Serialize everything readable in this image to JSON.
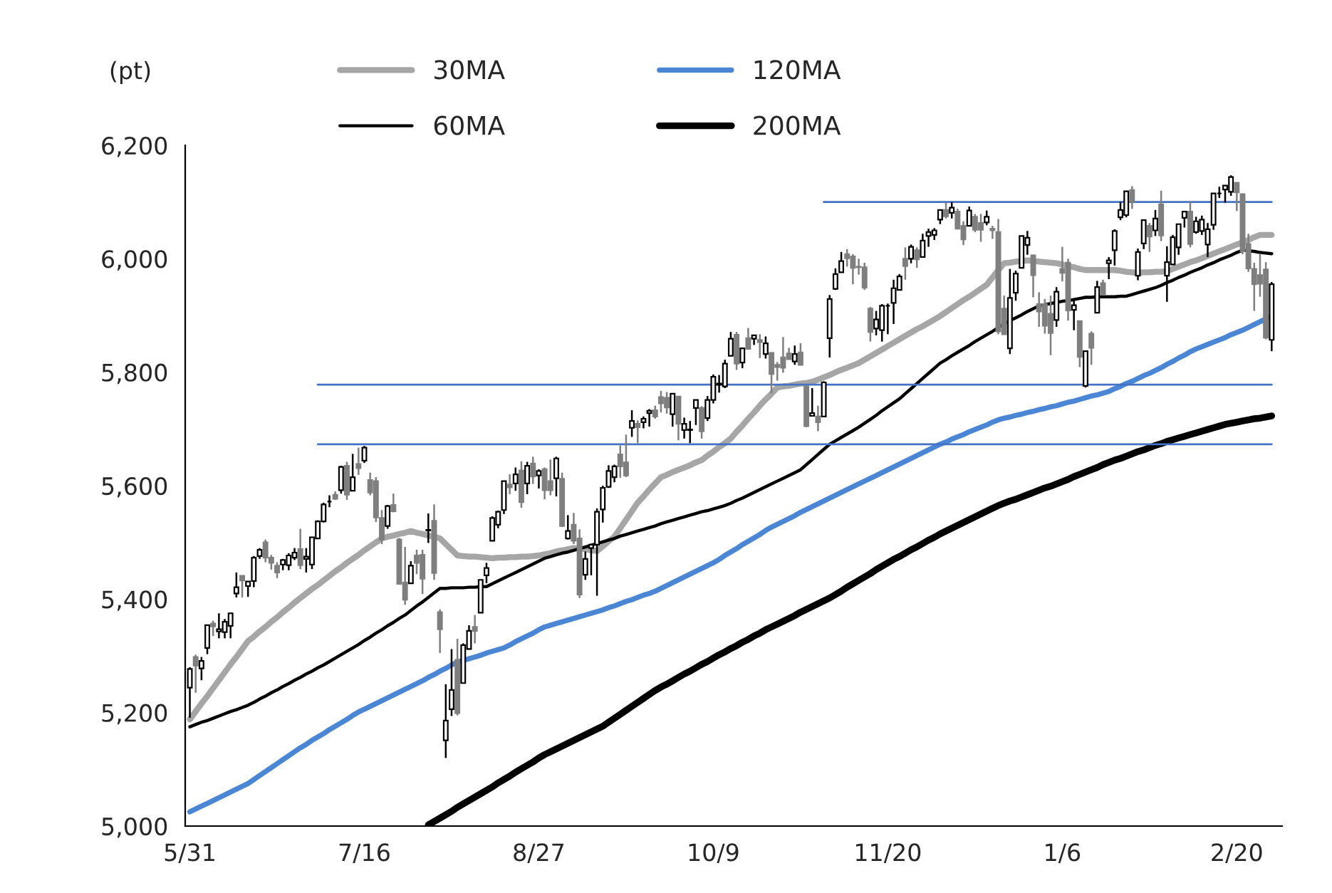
{
  "chart_data": {
    "type": "candlestick",
    "ylabel": "(pt)",
    "categories": [
      "5/31",
      null,
      null,
      null,
      null,
      null,
      null,
      null,
      null,
      null,
      null,
      null,
      null,
      null,
      null,
      null,
      null,
      null,
      null,
      null,
      null,
      null,
      null,
      null,
      null,
      null,
      null,
      null,
      null,
      null,
      "7/16",
      null,
      null,
      null,
      null,
      null,
      null,
      null,
      null,
      null,
      null,
      null,
      null,
      null,
      null,
      null,
      null,
      null,
      null,
      null,
      null,
      null,
      null,
      null,
      null,
      null,
      null,
      null,
      null,
      null,
      "8/27",
      null,
      null,
      null,
      null,
      null,
      null,
      null,
      null,
      null,
      null,
      null,
      null,
      null,
      null,
      null,
      null,
      null,
      null,
      null,
      null,
      null,
      null,
      null,
      null,
      null,
      null,
      null,
      null,
      null,
      "10/9",
      null,
      null,
      null,
      null,
      null,
      null,
      null,
      null,
      null,
      null,
      null,
      null,
      null,
      null,
      null,
      null,
      null,
      null,
      null,
      null,
      null,
      null,
      null,
      null,
      null,
      null,
      null,
      null,
      null,
      "11/20",
      null,
      null,
      null,
      null,
      null,
      null,
      null,
      null,
      null,
      null,
      null,
      null,
      null,
      null,
      null,
      null,
      null,
      null,
      null,
      null,
      null,
      null,
      null,
      null,
      null,
      null,
      null,
      null,
      null,
      "1/6",
      null,
      null,
      null,
      null,
      null,
      null,
      null,
      null,
      null,
      null,
      null,
      null,
      null,
      null,
      null,
      null,
      null,
      null,
      null,
      null,
      null,
      null,
      null,
      null,
      null,
      null,
      null,
      null,
      null,
      "2/20",
      null,
      null,
      null,
      null,
      null,
      null
    ],
    "ohlc": [
      [
        5244,
        5280,
        5191,
        5277
      ],
      [
        5298,
        5302,
        5235,
        5283
      ],
      [
        5278,
        5298,
        5257,
        5291
      ],
      [
        5314,
        5355,
        5303,
        5354
      ],
      [
        5357,
        5362,
        5335,
        5352
      ],
      [
        5343,
        5375,
        5331,
        5347
      ],
      [
        5342,
        5365,
        5331,
        5360
      ],
      [
        5353,
        5376,
        5331,
        5375
      ],
      [
        5410,
        5447,
        5403,
        5421
      ],
      [
        5441,
        5441,
        5403,
        5433
      ],
      [
        5423,
        5432,
        5404,
        5431
      ],
      [
        5432,
        5476,
        5421,
        5473
      ],
      [
        5476,
        5490,
        5471,
        5487
      ],
      [
        5500,
        5505,
        5465,
        5473
      ],
      [
        5473,
        5478,
        5452,
        5464
      ],
      [
        5459,
        5465,
        5437,
        5447
      ],
      [
        5461,
        5471,
        5451,
        5469
      ],
      [
        5460,
        5481,
        5451,
        5477
      ],
      [
        5473,
        5490,
        5469,
        5482
      ],
      [
        5488,
        5524,
        5453,
        5460
      ],
      [
        5471,
        5490,
        5447,
        5475
      ],
      [
        5461,
        5510,
        5453,
        5509
      ],
      [
        5507,
        5539,
        5507,
        5537
      ],
      [
        5537,
        5570,
        5535,
        5567
      ],
      [
        5572,
        5583,
        5562,
        5572
      ],
      [
        5584,
        5590,
        5575,
        5577
      ],
      [
        5592,
        5635,
        5586,
        5633
      ],
      [
        5635,
        5642,
        5575,
        5584
      ],
      [
        5591,
        5656,
        5591,
        5615
      ],
      [
        5638,
        5667,
        5619,
        5631
      ],
      [
        5644,
        5670,
        5640,
        5667
      ],
      [
        5610,
        5623,
        5583,
        5588
      ],
      [
        5608,
        5615,
        5536,
        5544
      ],
      [
        5543,
        5557,
        5497,
        5505
      ],
      [
        5529,
        5566,
        5524,
        5564
      ],
      [
        5566,
        5586,
        5553,
        5555
      ],
      [
        5505,
        5508,
        5427,
        5427
      ],
      [
        5429,
        5492,
        5390,
        5399
      ],
      [
        5428,
        5467,
        5427,
        5459
      ],
      [
        5477,
        5487,
        5444,
        5464
      ],
      [
        5478,
        5487,
        5409,
        5436
      ],
      [
        5521,
        5551,
        5499,
        5522
      ],
      [
        5538,
        5567,
        5434,
        5446
      ],
      [
        5377,
        5382,
        5305,
        5347
      ],
      [
        5151,
        5250,
        5120,
        5186
      ],
      [
        5206,
        5312,
        5194,
        5240
      ],
      [
        5293,
        5330,
        5195,
        5199
      ],
      [
        5252,
        5322,
        5252,
        5319
      ],
      [
        5312,
        5354,
        5311,
        5344
      ],
      [
        5351,
        5372,
        5322,
        5344
      ],
      [
        5376,
        5434,
        5376,
        5434
      ],
      [
        5442,
        5464,
        5428,
        5455
      ],
      [
        5503,
        5546,
        5502,
        5543
      ],
      [
        5531,
        5556,
        5525,
        5554
      ],
      [
        5557,
        5608,
        5550,
        5608
      ],
      [
        5602,
        5620,
        5585,
        5597
      ],
      [
        5604,
        5632,
        5591,
        5620
      ],
      [
        5627,
        5643,
        5561,
        5571
      ],
      [
        5604,
        5642,
        5585,
        5635
      ],
      [
        5639,
        5651,
        5603,
        5616
      ],
      [
        5618,
        5629,
        5595,
        5626
      ],
      [
        5629,
        5632,
        5576,
        5592
      ],
      [
        5608,
        5646,
        5583,
        5592
      ],
      [
        5613,
        5651,
        5581,
        5648
      ],
      [
        5612,
        5623,
        5527,
        5529
      ],
      [
        5507,
        5548,
        5505,
        5520
      ],
      [
        5531,
        5552,
        5497,
        5503
      ],
      [
        5507,
        5523,
        5402,
        5408
      ],
      [
        5443,
        5484,
        5434,
        5471
      ],
      [
        5490,
        5497,
        5442,
        5496
      ],
      [
        5496,
        5560,
        5406,
        5554
      ],
      [
        5558,
        5600,
        5535,
        5596
      ],
      [
        5598,
        5636,
        5596,
        5626
      ],
      [
        5615,
        5637,
        5606,
        5634
      ],
      [
        5655,
        5671,
        5614,
        5634
      ],
      [
        5641,
        5690,
        5615,
        5618
      ],
      [
        5702,
        5733,
        5686,
        5714
      ],
      [
        5709,
        5715,
        5675,
        5703
      ],
      [
        5712,
        5722,
        5701,
        5718
      ],
      [
        5728,
        5735,
        5704,
        5732
      ],
      [
        5733,
        5741,
        5718,
        5722
      ],
      [
        5756,
        5767,
        5729,
        5745
      ],
      [
        5755,
        5765,
        5727,
        5738
      ],
      [
        5726,
        5763,
        5704,
        5762
      ],
      [
        5757,
        5758,
        5680,
        5709
      ],
      [
        5698,
        5720,
        5683,
        5709
      ],
      [
        5698,
        5714,
        5675,
        5699
      ],
      [
        5737,
        5751,
        5707,
        5751
      ],
      [
        5737,
        5740,
        5683,
        5696
      ],
      [
        5719,
        5758,
        5714,
        5751
      ],
      [
        5751,
        5796,
        5745,
        5792
      ],
      [
        5778,
        5795,
        5764,
        5780
      ],
      [
        5775,
        5822,
        5772,
        5815
      ],
      [
        5829,
        5871,
        5829,
        5859
      ],
      [
        5866,
        5871,
        5804,
        5815
      ],
      [
        5817,
        5843,
        5807,
        5842
      ],
      [
        5860,
        5878,
        5840,
        5841
      ],
      [
        5859,
        5866,
        5848,
        5865
      ],
      [
        5857,
        5867,
        5825,
        5853
      ],
      [
        5832,
        5863,
        5824,
        5851
      ],
      [
        5834,
        5835,
        5763,
        5797
      ],
      [
        5813,
        5818,
        5785,
        5809
      ],
      [
        5826,
        5862,
        5799,
        5808
      ],
      [
        5833,
        5843,
        5823,
        5823
      ],
      [
        5819,
        5847,
        5813,
        5832
      ],
      [
        5835,
        5851,
        5812,
        5813
      ],
      [
        5775,
        5775,
        5703,
        5705
      ],
      [
        5723,
        5772,
        5723,
        5728
      ],
      [
        5722,
        5741,
        5696,
        5712
      ],
      [
        5722,
        5784,
        5722,
        5782
      ],
      [
        5860,
        5936,
        5826,
        5929
      ],
      [
        5947,
        5983,
        5945,
        5973
      ],
      [
        5976,
        6012,
        5976,
        5996
      ],
      [
        6008,
        6017,
        5986,
        6001
      ],
      [
        6004,
        6008,
        5955,
        5984
      ],
      [
        5986,
        6000,
        5972,
        5985
      ],
      [
        5985,
        5993,
        5945,
        5949
      ],
      [
        5912,
        5915,
        5854,
        5871
      ],
      [
        5877,
        5908,
        5865,
        5893
      ],
      [
        5874,
        5920,
        5854,
        5917
      ],
      [
        5917,
        5921,
        5867,
        5917
      ],
      [
        5922,
        5963,
        5885,
        5948
      ],
      [
        5945,
        5973,
        5945,
        5969
      ],
      [
        6000,
        6020,
        5963,
        5987
      ],
      [
        6000,
        6025,
        5992,
        6021
      ],
      [
        6015,
        6020,
        5984,
        5999
      ],
      [
        6003,
        6044,
        6003,
        6032
      ],
      [
        6040,
        6053,
        6021,
        6047
      ],
      [
        6042,
        6054,
        6033,
        6050
      ],
      [
        6069,
        6087,
        6061,
        6086
      ],
      [
        6086,
        6099,
        6071,
        6075
      ],
      [
        6081,
        6100,
        6071,
        6090
      ],
      [
        6083,
        6088,
        6053,
        6053
      ],
      [
        6058,
        6066,
        6024,
        6034
      ],
      [
        6058,
        6092,
        6058,
        6085
      ],
      [
        6074,
        6079,
        6047,
        6051
      ],
      [
        6063,
        6079,
        6030,
        6051
      ],
      [
        6064,
        6085,
        6059,
        6074
      ],
      [
        6053,
        6058,
        6035,
        6050
      ],
      [
        6047,
        6070,
        5867,
        5872
      ],
      [
        5912,
        5935,
        5866,
        5867
      ],
      [
        5842,
        5982,
        5832,
        5931
      ],
      [
        5940,
        5979,
        5926,
        5974
      ],
      [
        5984,
        6040,
        5983,
        6040
      ],
      [
        6024,
        6049,
        6007,
        6037
      ],
      [
        6006,
        6007,
        5932,
        5971
      ],
      [
        5920,
        5941,
        5880,
        5907
      ],
      [
        5920,
        5929,
        5868,
        5882
      ],
      [
        5903,
        5935,
        5830,
        5869
      ],
      [
        5892,
        5950,
        5880,
        5942
      ],
      [
        5982,
        6021,
        5960,
        5975
      ],
      [
        5993,
        6000,
        5891,
        5909
      ],
      [
        5910,
        5927,
        5874,
        5918
      ],
      [
        5890,
        5891,
        5809,
        5827
      ],
      [
        5776,
        5838,
        5773,
        5837
      ],
      [
        5868,
        5872,
        5813,
        5843
      ],
      [
        5905,
        5961,
        5905,
        5950
      ],
      [
        5957,
        5963,
        5935,
        5937
      ],
      [
        5992,
        6003,
        5964,
        5997
      ],
      [
        6015,
        6052,
        5988,
        6049
      ],
      [
        6073,
        6100,
        6068,
        6086
      ],
      [
        6077,
        6119,
        6073,
        6119
      ],
      [
        6121,
        6128,
        6088,
        6101
      ],
      [
        5970,
        6018,
        5962,
        6012
      ],
      [
        6027,
        6069,
        6017,
        6068
      ],
      [
        6058,
        6063,
        6012,
        6039
      ],
      [
        6050,
        6086,
        6040,
        6071
      ],
      [
        6096,
        6120,
        6031,
        6041
      ],
      [
        5970,
        6022,
        5924,
        5994
      ],
      [
        5990,
        6042,
        5989,
        6038
      ],
      [
        6020,
        6062,
        6007,
        6061
      ],
      [
        6072,
        6084,
        6055,
        6083
      ],
      [
        6083,
        6101,
        6020,
        6026
      ],
      [
        6047,
        6074,
        6044,
        6066
      ],
      [
        6049,
        6076,
        6042,
        6069
      ],
      [
        6025,
        6063,
        6003,
        6052
      ],
      [
        6060,
        6116,
        6051,
        6115
      ],
      [
        6115,
        6127,
        6107,
        6115
      ],
      [
        6122,
        6129,
        6099,
        6129
      ],
      [
        6118,
        6147,
        6111,
        6144
      ],
      [
        6134,
        6134,
        6084,
        6117
      ],
      [
        6114,
        6115,
        6008,
        6013
      ],
      [
        6026,
        6044,
        5977,
        5983
      ],
      [
        5982,
        5993,
        5908,
        5955
      ],
      [
        5971,
        6009,
        5933,
        5956
      ],
      [
        5981,
        5994,
        5858,
        5861
      ],
      [
        5857,
        5959,
        5837,
        5955
      ]
    ],
    "series": [
      {
        "name": "30MA",
        "type": "line",
        "color": "#a6a6a6",
        "values": [
          5188,
          5202,
          5216,
          5229,
          5243,
          5257,
          5271,
          5285,
          5298,
          5312,
          5326,
          5334,
          5343,
          5351,
          5360,
          5368,
          5377,
          5385,
          5394,
          5402,
          5410,
          5418,
          5425,
          5433,
          5441,
          5449,
          5456,
          5464,
          5471,
          5478,
          5486,
          5493,
          5500,
          5507,
          5510,
          5512,
          5515,
          5517,
          5520,
          5517,
          5515,
          5512,
          5510,
          5507,
          5497,
          5487,
          5477,
          5476,
          5475,
          5475,
          5474,
          5473,
          5472,
          5473,
          5473,
          5474,
          5474,
          5475,
          5475,
          5476,
          5477,
          5479,
          5481,
          5484,
          5486,
          5488,
          5490,
          5489,
          5488,
          5486,
          5485,
          5493,
          5502,
          5510,
          5525,
          5540,
          5555,
          5570,
          5581,
          5593,
          5604,
          5615,
          5619,
          5624,
          5628,
          5632,
          5636,
          5641,
          5645,
          5653,
          5660,
          5668,
          5675,
          5683,
          5695,
          5706,
          5718,
          5729,
          5741,
          5752,
          5762,
          5773,
          5775,
          5776,
          5778,
          5780,
          5781,
          5783,
          5787,
          5791,
          5795,
          5800,
          5804,
          5808,
          5812,
          5816,
          5822,
          5828,
          5834,
          5840,
          5846,
          5852,
          5858,
          5864,
          5870,
          5876,
          5881,
          5887,
          5893,
          5899,
          5906,
          5913,
          5920,
          5927,
          5933,
          5940,
          5947,
          5954,
          5967,
          5980,
          5992,
          5993,
          5995,
          5996,
          5997,
          5996,
          5995,
          5994,
          5993,
          5992,
          5990,
          5987,
          5985,
          5982,
          5980,
          5980,
          5980,
          5980,
          5980,
          5980,
          5979,
          5977,
          5976,
          5975,
          5976,
          5976,
          5977,
          5977,
          5978,
          5982,
          5986,
          5990,
          5994,
          5997,
          6001,
          6005,
          6009,
          6013,
          6017,
          6021,
          6025,
          6029,
          6033,
          6038,
          6042,
          6042,
          6042
        ]
      },
      {
        "name": "60MA",
        "type": "line",
        "color": "#000000",
        "values": [
          5175,
          5179,
          5183,
          5186,
          5190,
          5194,
          5198,
          5202,
          5205,
          5209,
          5213,
          5218,
          5224,
          5229,
          5235,
          5240,
          5246,
          5251,
          5257,
          5262,
          5268,
          5273,
          5279,
          5284,
          5290,
          5296,
          5302,
          5308,
          5314,
          5320,
          5327,
          5333,
          5340,
          5346,
          5353,
          5359,
          5366,
          5372,
          5380,
          5388,
          5395,
          5403,
          5411,
          5419,
          5419,
          5420,
          5420,
          5420,
          5421,
          5421,
          5422,
          5422,
          5427,
          5432,
          5437,
          5442,
          5447,
          5452,
          5457,
          5462,
          5467,
          5472,
          5475,
          5478,
          5481,
          5483,
          5486,
          5489,
          5492,
          5495,
          5498,
          5501,
          5504,
          5507,
          5511,
          5514,
          5517,
          5520,
          5523,
          5526,
          5529,
          5533,
          5536,
          5539,
          5542,
          5545,
          5548,
          5551,
          5554,
          5556,
          5559,
          5562,
          5565,
          5569,
          5574,
          5578,
          5583,
          5588,
          5593,
          5598,
          5603,
          5608,
          5613,
          5618,
          5623,
          5628,
          5637,
          5646,
          5655,
          5664,
          5673,
          5679,
          5685,
          5691,
          5697,
          5703,
          5710,
          5717,
          5724,
          5732,
          5739,
          5746,
          5753,
          5762,
          5771,
          5780,
          5789,
          5798,
          5807,
          5816,
          5822,
          5829,
          5835,
          5841,
          5847,
          5854,
          5860,
          5866,
          5872,
          5879,
          5885,
          5891,
          5896,
          5901,
          5907,
          5912,
          5917,
          5919,
          5921,
          5923,
          5925,
          5926,
          5928,
          5930,
          5932,
          5932,
          5933,
          5933,
          5933,
          5933,
          5934,
          5934,
          5937,
          5940,
          5943,
          5946,
          5949,
          5953,
          5958,
          5962,
          5967,
          5971,
          5976,
          5980,
          5984,
          5989,
          5993,
          5998,
          6002,
          6006,
          6011,
          6015,
          6014,
          6013,
          6011,
          6010,
          6009
        ]
      },
      {
        "name": "120MA",
        "type": "line",
        "color": "#4a86d4",
        "values": [
          5025,
          5030,
          5035,
          5040,
          5045,
          5050,
          5055,
          5060,
          5065,
          5070,
          5075,
          5082,
          5089,
          5096,
          5103,
          5110,
          5117,
          5124,
          5131,
          5138,
          5144,
          5151,
          5157,
          5163,
          5170,
          5176,
          5182,
          5188,
          5195,
          5201,
          5206,
          5211,
          5216,
          5221,
          5226,
          5231,
          5236,
          5241,
          5246,
          5251,
          5256,
          5262,
          5267,
          5273,
          5278,
          5284,
          5289,
          5292,
          5295,
          5298,
          5301,
          5305,
          5308,
          5311,
          5314,
          5319,
          5325,
          5330,
          5335,
          5340,
          5346,
          5351,
          5354,
          5357,
          5360,
          5363,
          5366,
          5369,
          5372,
          5375,
          5378,
          5381,
          5385,
          5388,
          5392,
          5396,
          5399,
          5403,
          5407,
          5410,
          5414,
          5419,
          5424,
          5429,
          5434,
          5439,
          5444,
          5449,
          5454,
          5459,
          5464,
          5470,
          5477,
          5483,
          5489,
          5496,
          5502,
          5508,
          5514,
          5521,
          5527,
          5532,
          5537,
          5542,
          5547,
          5553,
          5558,
          5563,
          5568,
          5573,
          5578,
          5583,
          5588,
          5593,
          5598,
          5603,
          5608,
          5613,
          5618,
          5623,
          5628,
          5633,
          5638,
          5643,
          5648,
          5653,
          5658,
          5663,
          5668,
          5673,
          5677,
          5682,
          5686,
          5690,
          5695,
          5699,
          5703,
          5707,
          5712,
          5716,
          5719,
          5721,
          5724,
          5726,
          5729,
          5731,
          5734,
          5736,
          5739,
          5741,
          5744,
          5747,
          5749,
          5752,
          5755,
          5758,
          5760,
          5763,
          5766,
          5771,
          5775,
          5780,
          5784,
          5789,
          5794,
          5798,
          5803,
          5808,
          5814,
          5819,
          5825,
          5830,
          5836,
          5841,
          5845,
          5849,
          5853,
          5857,
          5861,
          5866,
          5870,
          5874,
          5879,
          5884,
          5889,
          5894,
          5899
        ]
      },
      {
        "name": "200MA",
        "type": "line",
        "color": "#000000",
        "values": [
          null,
          null,
          null,
          null,
          null,
          null,
          null,
          null,
          null,
          null,
          null,
          null,
          null,
          null,
          null,
          null,
          null,
          null,
          null,
          null,
          null,
          null,
          null,
          null,
          null,
          null,
          null,
          null,
          null,
          null,
          null,
          null,
          null,
          null,
          null,
          null,
          null,
          null,
          null,
          null,
          null,
          5002,
          5008,
          5014,
          5020,
          5026,
          5033,
          5039,
          5045,
          5051,
          5057,
          5063,
          5069,
          5076,
          5082,
          5088,
          5095,
          5101,
          5107,
          5113,
          5120,
          5126,
          5131,
          5136,
          5141,
          5146,
          5151,
          5156,
          5161,
          5166,
          5171,
          5176,
          5183,
          5190,
          5197,
          5204,
          5211,
          5218,
          5225,
          5232,
          5239,
          5245,
          5250,
          5256,
          5262,
          5268,
          5273,
          5279,
          5285,
          5290,
          5296,
          5302,
          5307,
          5313,
          5318,
          5324,
          5329,
          5335,
          5340,
          5346,
          5351,
          5356,
          5361,
          5366,
          5371,
          5377,
          5382,
          5387,
          5392,
          5397,
          5402,
          5408,
          5414,
          5421,
          5427,
          5433,
          5439,
          5445,
          5452,
          5458,
          5464,
          5470,
          5475,
          5481,
          5487,
          5492,
          5498,
          5504,
          5509,
          5515,
          5520,
          5525,
          5530,
          5535,
          5540,
          5545,
          5550,
          5555,
          5560,
          5565,
          5569,
          5573,
          5576,
          5580,
          5584,
          5588,
          5592,
          5596,
          5599,
          5603,
          5607,
          5611,
          5616,
          5620,
          5624,
          5628,
          5632,
          5637,
          5641,
          5645,
          5648,
          5652,
          5656,
          5660,
          5663,
          5667,
          5671,
          5674,
          5678,
          5681,
          5684,
          5687,
          5690,
          5693,
          5696,
          5699,
          5702,
          5705,
          5708,
          5710,
          5712,
          5714,
          5716,
          5718,
          5719,
          5721,
          5723
        ]
      },
      {
        "type": "line",
        "color": "#4472c4",
        "values": [
          null,
          null,
          null,
          null,
          null,
          null,
          null,
          null,
          null,
          null,
          null,
          null,
          null,
          null,
          null,
          null,
          null,
          null,
          null,
          null,
          null,
          null,
          null,
          null,
          null,
          null,
          null,
          null,
          null,
          null,
          null,
          null,
          null,
          null,
          null,
          null,
          null,
          null,
          null,
          null,
          null,
          null,
          null,
          null,
          null,
          null,
          null,
          null,
          null,
          null,
          null,
          null,
          null,
          null,
          null,
          null,
          null,
          null,
          null,
          null,
          null,
          null,
          null,
          null,
          null,
          null,
          null,
          null,
          null,
          null,
          null,
          null,
          null,
          null,
          null,
          null,
          null,
          null,
          null,
          null,
          null,
          null,
          null,
          null,
          null,
          null,
          null,
          null,
          null,
          null,
          null,
          null,
          null,
          null,
          null,
          null,
          null,
          null,
          null,
          null,
          null,
          null,
          null,
          null,
          null,
          null,
          null,
          null,
          null,
          6100,
          6100,
          6100,
          6100,
          6100,
          6100,
          6100,
          6100,
          6100,
          6100,
          6100,
          6100,
          6100,
          6100,
          6100,
          6100,
          6100,
          6100,
          6100,
          6100,
          6100,
          6100,
          6100,
          6100,
          6100,
          6100,
          6100,
          6100,
          6100,
          6100,
          6100,
          6100,
          6100,
          6100,
          6100,
          6100,
          6100,
          6100,
          6100,
          6100,
          6100,
          6100,
          6100,
          6100,
          6100,
          6100,
          6100,
          6100,
          6100,
          6100,
          6100,
          6100,
          6100,
          6100,
          6100,
          6100,
          6100,
          6100,
          6100,
          6100,
          6100,
          6100,
          6100,
          6100,
          6100,
          6100,
          6100,
          6100,
          6100,
          6100,
          6100,
          6100,
          6100,
          6100,
          6100,
          6100,
          6100,
          6100
        ]
      },
      {
        "type": "line",
        "color": "#4472c4",
        "values": [
          null,
          null,
          null,
          null,
          null,
          null,
          null,
          null,
          null,
          null,
          null,
          null,
          null,
          null,
          null,
          null,
          null,
          null,
          null,
          null,
          null,
          null,
          5778,
          5778,
          5778,
          5778,
          5778,
          5778,
          5778,
          5778,
          5778,
          5778,
          5778,
          5778,
          5778,
          5778,
          5778,
          5778,
          5778,
          5778,
          5778,
          5778,
          5778,
          5778,
          5778,
          5778,
          5778,
          5778,
          5778,
          5778,
          5778,
          5778,
          5778,
          5778,
          5778,
          5778,
          5778,
          5778,
          5778,
          5778,
          5778,
          5778,
          5778,
          5778,
          5778,
          5778,
          5778,
          5778,
          5778,
          5778,
          5778,
          5778,
          5778,
          5778,
          5778,
          5778,
          5778,
          5778,
          5778,
          5778,
          5778,
          5778,
          5778,
          5778,
          5778,
          5778,
          5778,
          5778,
          5778,
          5778,
          5778,
          5778,
          5778,
          5778,
          5778,
          5778,
          5778,
          5778,
          5778,
          5778,
          5778,
          5778,
          5778,
          5778,
          5778,
          5778,
          5778,
          5778,
          5778,
          5778,
          5778,
          5778,
          5778,
          5778,
          5778,
          5778,
          5778,
          5778,
          5778,
          5778,
          5778,
          5778,
          5778,
          5778,
          5778,
          5778,
          5778,
          5778,
          5778,
          5778,
          5778,
          5778,
          5778,
          5778,
          5778,
          5778,
          5778,
          5778,
          5778,
          5778,
          5778,
          5778,
          5778,
          5778,
          5778,
          5778,
          5778,
          5778,
          5778,
          5778,
          5778,
          5778,
          5778,
          5778,
          5778,
          5778,
          5778,
          5778,
          5778,
          5778,
          5778,
          5778,
          5778,
          5778,
          5778,
          5778,
          5778,
          5778,
          5778,
          5778,
          5778,
          5778,
          5778,
          5778,
          5778,
          5778,
          5778,
          5778,
          5778,
          5778,
          5778,
          5778,
          5778,
          5778,
          5778,
          5778,
          5778
        ]
      },
      {
        "type": "line",
        "color": "#4472c4",
        "values": [
          null,
          null,
          null,
          null,
          null,
          null,
          null,
          null,
          null,
          null,
          null,
          null,
          null,
          null,
          null,
          null,
          null,
          null,
          null,
          null,
          null,
          null,
          5673,
          5673,
          5673,
          5673,
          5673,
          5673,
          5673,
          5673,
          5673,
          5673,
          5673,
          5673,
          5673,
          5673,
          5673,
          5673,
          5673,
          5673,
          5673,
          5673,
          5673,
          5673,
          5673,
          5673,
          5673,
          5673,
          5673,
          5673,
          5673,
          5673,
          5673,
          5673,
          5673,
          5673,
          5673,
          5673,
          5673,
          5673,
          5673,
          5673,
          5673,
          5673,
          5673,
          5673,
          5673,
          5673,
          5673,
          5673,
          5673,
          5673,
          5673,
          5673,
          5673,
          5673,
          5673,
          5673,
          5673,
          5673,
          5673,
          5673,
          5673,
          5673,
          5673,
          5673,
          5673,
          5673,
          5673,
          5673,
          5673,
          5673,
          5673,
          5673,
          5673,
          5673,
          5673,
          5673,
          5673,
          5673,
          5673,
          5673,
          5673,
          5673,
          5673,
          5673,
          5673,
          5673,
          5673,
          5673,
          5673,
          5673,
          5673,
          5673,
          5673,
          5673,
          5673,
          5673,
          5673,
          5673,
          5673,
          5673,
          5673,
          5673,
          5673,
          5673,
          5673,
          5673,
          5673,
          5673,
          5673,
          5673,
          5673,
          5673,
          5673,
          5673,
          5673,
          5673,
          5673,
          5673,
          5673,
          5673,
          5673,
          5673,
          5673,
          5673,
          5673,
          5673,
          5673,
          5673,
          5673,
          5673,
          5673,
          5673,
          5673,
          5673,
          5673,
          5673,
          5673,
          5673,
          5673,
          5673,
          5673,
          5673,
          5673,
          5673,
          5673,
          5673,
          5673,
          5673,
          5673,
          5673,
          5673,
          5673,
          5673,
          5673,
          5673,
          5673,
          5673,
          5673,
          5673,
          5673,
          5673,
          5673,
          5673,
          5673,
          5673
        ]
      }
    ],
    "ylim": [
      5000,
      6200
    ],
    "yticks": [
      {
        "value": 5000,
        "label": "5,000"
      },
      {
        "value": 5200,
        "label": "5,200"
      },
      {
        "value": 5400,
        "label": "5,400"
      },
      {
        "value": 5600,
        "label": "5,600"
      },
      {
        "value": 5800,
        "label": "5,800"
      },
      {
        "value": 6000,
        "label": "6,000"
      },
      {
        "value": 6200,
        "label": "6,200"
      }
    ],
    "legend": "top left",
    "grid": false
  }
}
